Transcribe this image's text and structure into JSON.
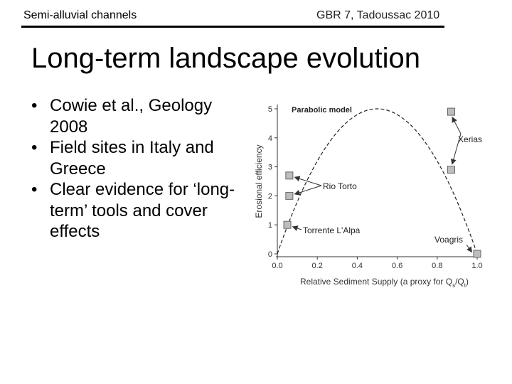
{
  "header": {
    "left": "Semi-alluvial channels",
    "right": "GBR 7, Tadoussac 2010"
  },
  "title": "Long-term landscape evolution",
  "bullets": [
    "Cowie et al., Geology 2008",
    "Field sites in Italy and Greece",
    "Clear evidence for ‘long-term’ tools and cover effects"
  ],
  "bullet_glyph": "•",
  "chart_data": {
    "type": "scatter",
    "xlabel": "Relative Sediment Supply (a proxy for Q",
    "xlabel_sub1": "s",
    "xlabel_mid": "/Q",
    "xlabel_sub2": "t",
    "xlabel_end": ")",
    "ylabel": "Erosional efficiency",
    "xlim": [
      0,
      1
    ],
    "ylim": [
      0,
      5
    ],
    "x_ticks": [
      "0.0",
      "0.2",
      "0.4",
      "0.6",
      "0.8",
      "1.0"
    ],
    "y_ticks": [
      "0",
      "1",
      "2",
      "3",
      "4",
      "5"
    ],
    "curve_label": "Parabolic model",
    "curve": {
      "formula": "y = 20 x (1 - x)",
      "x_range": [
        0,
        1
      ]
    },
    "points": [
      {
        "x": 0.05,
        "y": 1.0
      },
      {
        "x": 0.06,
        "y": 2.0
      },
      {
        "x": 0.06,
        "y": 2.7
      },
      {
        "x": 0.87,
        "y": 4.9
      },
      {
        "x": 0.87,
        "y": 2.9
      },
      {
        "x": 1.0,
        "y": 0.0
      }
    ],
    "annotations": [
      {
        "text": "Xerias",
        "points": [
          3,
          4
        ]
      },
      {
        "text": "Rio Torto",
        "points": [
          1,
          2
        ]
      },
      {
        "text": "Torrente L'Alpa",
        "points": [
          0
        ]
      },
      {
        "text": "Voagris",
        "points": [
          5
        ]
      }
    ]
  }
}
